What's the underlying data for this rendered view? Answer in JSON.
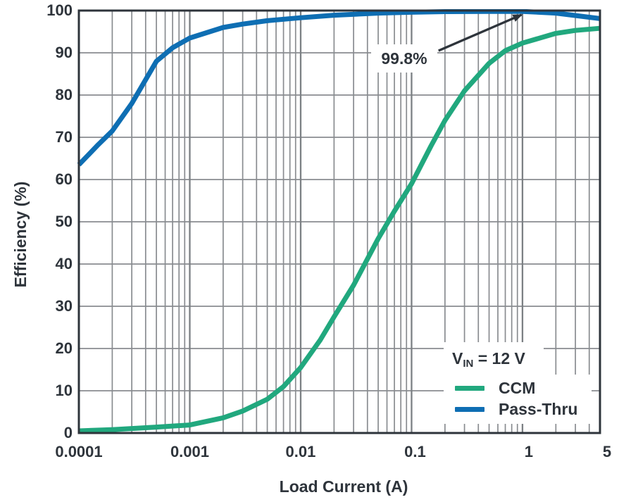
{
  "colors": {
    "ccm_green": "#21a87e",
    "passthru_blue": "#0e6eb3",
    "frame": "#2e343b",
    "grid_minor": "#898c90",
    "grid_major": "#7c8084",
    "text": "#2e343b",
    "background": "#ffffff"
  },
  "chart_data": {
    "type": "line",
    "title": "",
    "xlabel": "Load Current (A)",
    "ylabel": "Efficiency (%)",
    "x_scale": "log",
    "xlim": [
      0.0001,
      5
    ],
    "ylim": [
      0,
      100
    ],
    "grid": "major horizontal every 10%, log-decade vertical with minors",
    "x_ticks": [
      {
        "value": 0.0001,
        "label": "0.0001"
      },
      {
        "value": 0.001,
        "label": "0.001"
      },
      {
        "value": 0.01,
        "label": "0.01"
      },
      {
        "value": 0.1,
        "label": "0.1"
      },
      {
        "value": 1,
        "label": "1"
      },
      {
        "value": 5,
        "label": "5"
      }
    ],
    "y_ticks": [
      {
        "value": 0,
        "label": "0"
      },
      {
        "value": 10,
        "label": "10"
      },
      {
        "value": 20,
        "label": "20"
      },
      {
        "value": 30,
        "label": "30"
      },
      {
        "value": 40,
        "label": "40"
      },
      {
        "value": 50,
        "label": "50"
      },
      {
        "value": 60,
        "label": "60"
      },
      {
        "value": 70,
        "label": "70"
      },
      {
        "value": 80,
        "label": "80"
      },
      {
        "value": 90,
        "label": "90"
      },
      {
        "value": 100,
        "label": "100"
      }
    ],
    "legend": {
      "position": "lower-right",
      "title": {
        "base": "V",
        "sub": "IN",
        "rest": " = 12 V"
      },
      "items": [
        {
          "name": "CCM",
          "color": "#21a87e"
        },
        {
          "name": "Pass-Thru",
          "color": "#0e6eb3"
        }
      ]
    },
    "annotation": {
      "text": "99.8%",
      "arrow_from": [
        0.175,
        90.5
      ],
      "arrow_to": [
        0.98,
        99.0
      ],
      "points_to": {
        "x": 1,
        "y": 99.8
      }
    },
    "series": [
      {
        "name": "CCM",
        "color": "#21a87e",
        "points": [
          [
            0.0001,
            0.5
          ],
          [
            0.0002,
            0.8
          ],
          [
            0.0005,
            1.4
          ],
          [
            0.001,
            1.9
          ],
          [
            0.002,
            3.6
          ],
          [
            0.003,
            5.2
          ],
          [
            0.005,
            8.0
          ],
          [
            0.007,
            11.0
          ],
          [
            0.01,
            15.5
          ],
          [
            0.015,
            22.0
          ],
          [
            0.02,
            27.5
          ],
          [
            0.03,
            35.0
          ],
          [
            0.05,
            46.0
          ],
          [
            0.07,
            52.5
          ],
          [
            0.1,
            59.0
          ],
          [
            0.15,
            68.0
          ],
          [
            0.2,
            74.0
          ],
          [
            0.3,
            81.0
          ],
          [
            0.5,
            87.5
          ],
          [
            0.7,
            90.5
          ],
          [
            1,
            92.3
          ],
          [
            2,
            94.6
          ],
          [
            3,
            95.3
          ],
          [
            5,
            95.8
          ]
        ]
      },
      {
        "name": "Pass-Thru",
        "color": "#0e6eb3",
        "points": [
          [
            0.0001,
            63.5
          ],
          [
            0.00015,
            68.3
          ],
          [
            0.0002,
            71.5
          ],
          [
            0.0003,
            78.0
          ],
          [
            0.0005,
            88.0
          ],
          [
            0.0007,
            91.2
          ],
          [
            0.001,
            93.5
          ],
          [
            0.002,
            96.0
          ],
          [
            0.003,
            96.8
          ],
          [
            0.005,
            97.6
          ],
          [
            0.01,
            98.3
          ],
          [
            0.02,
            98.9
          ],
          [
            0.05,
            99.4
          ],
          [
            0.1,
            99.6
          ],
          [
            0.2,
            99.75
          ],
          [
            0.5,
            99.8
          ],
          [
            1,
            99.8
          ],
          [
            2,
            99.4
          ],
          [
            5,
            98.1
          ]
        ]
      }
    ]
  }
}
